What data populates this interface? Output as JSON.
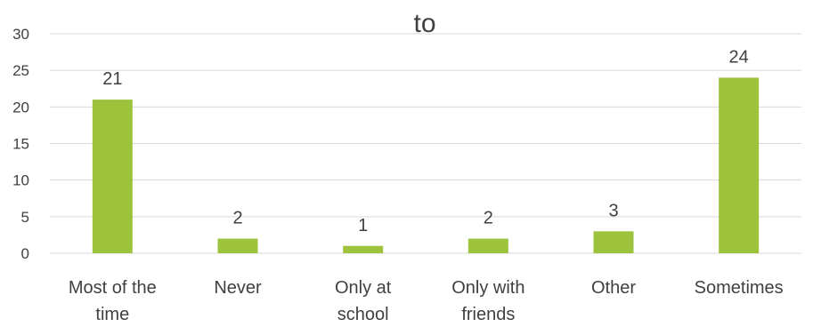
{
  "chart_data": {
    "type": "bar",
    "title": "to",
    "categories": [
      [
        "Most of the",
        "time"
      ],
      [
        "Never"
      ],
      [
        "Only at",
        "school"
      ],
      [
        "Only with",
        "friends"
      ],
      [
        "Other"
      ],
      [
        "Sometimes"
      ]
    ],
    "values": [
      21,
      2,
      1,
      2,
      3,
      24
    ],
    "data_labels": [
      "21",
      "2",
      "1",
      "2",
      "3",
      "24"
    ],
    "yticks": [
      "0",
      "5",
      "10",
      "15",
      "20",
      "25",
      "30"
    ],
    "ylim": [
      0,
      30
    ],
    "grid": true,
    "legend": "none",
    "bar_color": "#9dc23b"
  }
}
